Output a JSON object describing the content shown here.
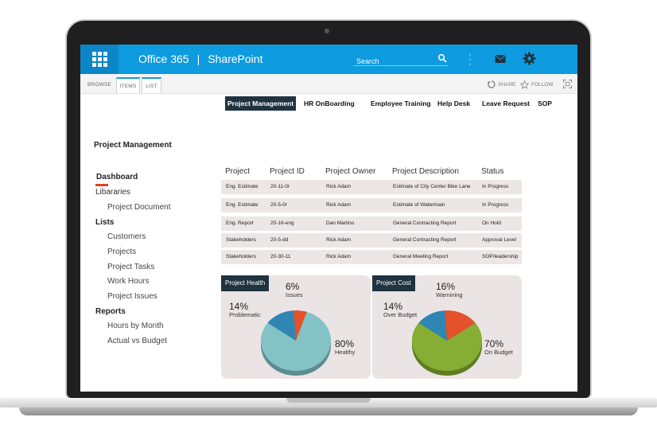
{
  "app": {
    "brand_left": "Office 365",
    "brand_separator": "|",
    "brand_right": "SharePoint",
    "search_placeholder": "Search",
    "accent": "#0e9be0"
  },
  "ribbon": {
    "tabs": [
      "BROWSE",
      "ITEMS",
      "LIST"
    ],
    "active_tab": "ITEMS",
    "share": "SHARE",
    "follow": "FOLLOW"
  },
  "topnav": [
    "Project Management",
    "HR OnBoarding",
    "Employee Training",
    "Help Desk",
    "Leave Request",
    "SOP"
  ],
  "page_title": "Project Management",
  "quicklaunch": {
    "dashboard": "Dashboard",
    "libraries": "Libararies",
    "project_document": "Project Document",
    "lists": "Lists",
    "customers": "Customers",
    "projects": "Projects",
    "project_tasks": "Project Tasks",
    "work_hours": "Work Hours",
    "project_issues": "Project Issues",
    "reports": "Reports",
    "hours_by_month": "Hours by Month",
    "actual_vs_budget": "Actual vs Budget"
  },
  "table": {
    "headers": [
      "Project",
      "Project ID",
      "Project Owner",
      "Project Description",
      "Status"
    ],
    "rows": [
      [
        "Eng. Estimate",
        "20-11-0r",
        "Rick Adam",
        "Estimate of City Center Bike Lane",
        "In Progress"
      ],
      [
        "Eng. Estimate",
        "20-5-0r",
        "Rick Adam",
        "Estimate of Watermain",
        "In Progress"
      ],
      [
        "Eng. Report",
        "20-16-eng",
        "Dan Martino",
        "General Contracting  Report",
        "On Hold"
      ],
      [
        "Stakeholders",
        "20-5-dd",
        "Rick Adam",
        "General Contracting  Report",
        "Approval Level"
      ],
      [
        "Stakeholders",
        "20-30-11",
        "Rick Adam",
        "General Meeting  Report",
        "SOP/leadership"
      ]
    ]
  },
  "chart_data": [
    {
      "type": "pie",
      "title": "Project Health",
      "categories": [
        "Healthy",
        "Problematic",
        "Issues"
      ],
      "values": [
        80,
        14,
        6
      ],
      "labels": [
        "80%",
        "14%",
        "6%"
      ],
      "colors": [
        "#83c3c6",
        "#2f86b3",
        "#e5512a"
      ]
    },
    {
      "type": "pie",
      "title": "Project Cost",
      "categories": [
        "On Budget",
        "Over Budget",
        "Warnining"
      ],
      "values": [
        70,
        14,
        16
      ],
      "labels": [
        "70%",
        "14%",
        "16%"
      ],
      "colors": [
        "#86ad34",
        "#2f86b3",
        "#e5512a"
      ]
    }
  ]
}
